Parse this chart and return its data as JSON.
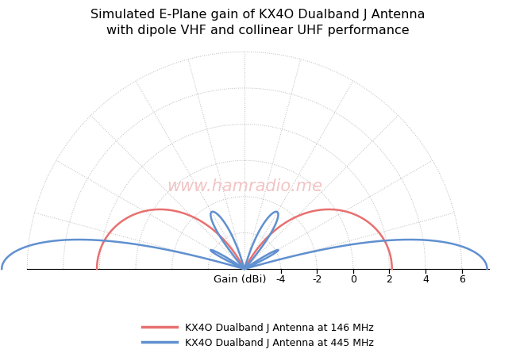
{
  "title_line1": "Simulated E-Plane gain of KX4O Dualband J Antenna",
  "title_line2": "with dipole VHF and collinear UHF performance",
  "xlabel": "Gain (dBi)",
  "legend_146": "KX4O Dualband J Antenna at 146 MHz",
  "legend_445": "KX4O Dualband J Antenna at 445 MHz",
  "color_146": "#E87070",
  "color_445": "#6090D0",
  "watermark": "www.hamradio.me",
  "watermark_color": "#F0BABA",
  "gain_ref": 6,
  "x_ticks": [
    -4,
    -2,
    0,
    2,
    4,
    6
  ],
  "grid_color": "#BBBBBB",
  "grid_rings_dBi": [
    -6,
    -4,
    -2,
    0,
    2,
    4,
    6
  ],
  "grid_spokes_deg": [
    0,
    15,
    30,
    45,
    60,
    75,
    90,
    105,
    120,
    135,
    150,
    165,
    180
  ],
  "background": "#FFFFFF",
  "lw_pattern_146": 1.8,
  "lw_pattern_445": 1.8,
  "lw_grid": 0.7,
  "title_fontsize": 11.5,
  "legend_fontsize": 9,
  "tick_fontsize": 9,
  "xlabel_fontsize": 9.5
}
